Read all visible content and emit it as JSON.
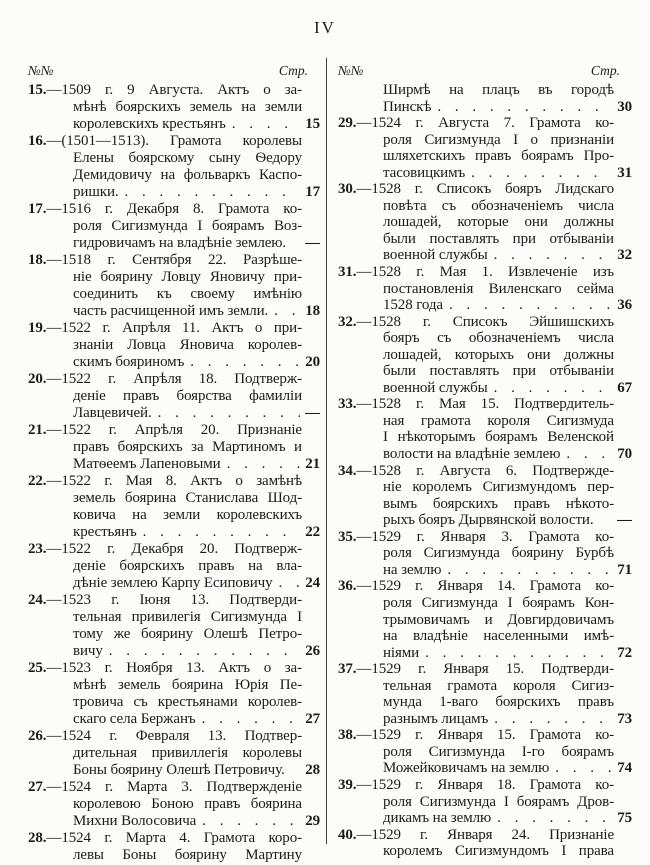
{
  "page_header": {
    "page_number": "IV"
  },
  "columns": {
    "left": {
      "header": {
        "no": "№№",
        "page": "Стр."
      },
      "entries": [
        {
          "num": "15.",
          "lines": [
            "—1509 г. 9 Августа. Актъ о за-",
            "мѣнѣ боярскихъ земель на земли"
          ],
          "last": "королевскихъ крестьянъ",
          "dots": true,
          "page": "15"
        },
        {
          "num": "16.",
          "lines": [
            "—(1501—1513). Грамота королевы",
            "Елены боярскому сыну Ѳедору",
            "Демидовичу на фольваркъ Каспо-"
          ],
          "last": "ришки.",
          "dots": true,
          "page": "17"
        },
        {
          "num": "17.",
          "lines": [
            "—1516 г. Декабря 8. Грамота ко-",
            "роля Сигизмунда I боярамъ Воз-"
          ],
          "last": "гидровичамъ на владѣніе землею.",
          "dots": false,
          "page": "—"
        },
        {
          "num": "18.",
          "lines": [
            "—1518 г. Сентября 22. Разрѣше-",
            "ніе боярину Ловцу Яновичу при-",
            "соединить къ своему имѣнію"
          ],
          "last": "часть расчищенной имъ земли.",
          "dots": true,
          "page": "18"
        },
        {
          "num": "19.",
          "lines": [
            "—1522 г. Апрѣля 11. Актъ о при-",
            "знаніи Ловца Яновича королев-"
          ],
          "last": "скимъ бояриномъ",
          "dots": true,
          "page": "20"
        },
        {
          "num": "20.",
          "lines": [
            "—1522 г. Апрѣля 18. Подтверж-",
            "деніе правъ боярства фамиліи"
          ],
          "last": "Лавцевичей.",
          "dots": true,
          "page": "—"
        },
        {
          "num": "21.",
          "lines": [
            "—1522 г. Апрѣля 20. Признаніе",
            "правъ боярскихъ за Мартиномъ и"
          ],
          "last": "Матѳеемъ Лапеновыми",
          "dots": true,
          "page": "21"
        },
        {
          "num": "22.",
          "lines": [
            "—1522 г. Мая 8. Актъ о замѣнѣ",
            "земель боярина Станислава Шод-",
            "ковича на земли королевскихъ"
          ],
          "last": "крестьянъ",
          "dots": true,
          "page": "22"
        },
        {
          "num": "23.",
          "lines": [
            "—1522 г. Декабря 20. Подтверж-",
            "деніе боярскихъ правъ на вла-"
          ],
          "last": "дѣніе землею Карпу Есиповичу",
          "dots": true,
          "page": "24"
        },
        {
          "num": "24.",
          "lines": [
            "—1523 г. Іюня 13. Подтверди-",
            "тельная привилегія Сигизмунда I",
            "тому же боярину Олешѣ Петро-"
          ],
          "last": "вичу",
          "dots": true,
          "page": "26"
        },
        {
          "num": "25.",
          "lines": [
            "—1523 г. Ноября 13. Актъ о за-",
            "мѣнѣ земель боярина Юрія Пе-",
            "тровича съ крестьянами королев-"
          ],
          "last": "скаго села Бержанъ",
          "dots": true,
          "page": "27"
        },
        {
          "num": "26.",
          "lines": [
            "—1524 г. Февраля 13. Подтвер-",
            "дительная привиллегія королевы"
          ],
          "last": "Боны боярину Олешѣ Петровичу.",
          "dots": false,
          "page": "28"
        },
        {
          "num": "27.",
          "lines": [
            "—1524 г. Марта 3. Подтвержденіе",
            "королевою Боною правъ боярина"
          ],
          "last": "Михни Волосовича",
          "dots": true,
          "page": "29"
        },
        {
          "num": "28.",
          "lines": [
            "—1524 г. Марта 4. Грамота коро-"
          ],
          "last": "левы Боны боярину Мартину",
          "dots": false,
          "page": ""
        }
      ]
    },
    "right": {
      "header": {
        "no": "№№",
        "page": "Стр."
      },
      "entries": [
        {
          "num": "",
          "lines": [
            "Ширмѣ на плацъ въ городѣ"
          ],
          "last": "Пинскѣ",
          "dots": true,
          "page": "30"
        },
        {
          "num": "29.",
          "lines": [
            "—1524 г. Августа 7. Грамота ко-",
            "роля Сигизмунда I о признаніи",
            "шляхетскихъ правъ боярамъ Про-"
          ],
          "last": "тасовицкимъ",
          "dots": true,
          "page": "31"
        },
        {
          "num": "30.",
          "lines": [
            "—1528 г. Списокъ бояръ Лидскаго",
            "повѣта съ обозначеніемъ числа",
            "лошадей, которые они должны",
            "были поставлять при отбываніи"
          ],
          "last": "военной службы",
          "dots": true,
          "page": "32"
        },
        {
          "num": "31.",
          "lines": [
            "—1528 г. Мая 1. Извлеченіе изъ",
            "постановленія Виленскаго сейма"
          ],
          "last": "1528 года",
          "dots": true,
          "page": "36"
        },
        {
          "num": "32.",
          "lines": [
            "—1528 г. Списокъ Эйшишскихъ",
            "бояръ съ обозначеніемъ числа",
            "лошадей, которыхъ они должны",
            "были поставлять при отбываніи"
          ],
          "last": "военной службы",
          "dots": true,
          "page": "67"
        },
        {
          "num": "33.",
          "lines": [
            "—1528 г. Мая 15. Подтвердитель-",
            "ная грамота короля Сигизмуда",
            "I нѣкоторымъ боярамъ Веленской"
          ],
          "last": "волости на владѣніе землею",
          "dots": true,
          "page": "70"
        },
        {
          "num": "34.",
          "lines": [
            "—1528 г. Августа 6. Подтвержде-",
            "ніе королемъ Сигизмундомъ пер-",
            "вымъ боярскихъ правъ нѣкото-"
          ],
          "last": "рыхъ бояръ Дырвянской волости.",
          "dots": false,
          "page": "—"
        },
        {
          "num": "35.",
          "lines": [
            "—1529 г. Января 3. Грамота ко-",
            "роля Сигизмунда боярину Бурбѣ"
          ],
          "last": "на землю",
          "dots": true,
          "page": "71"
        },
        {
          "num": "36.",
          "lines": [
            "—1529 г. Января 14. Грамота ко-",
            "роля Сигизмунда I боярамъ Кон-",
            "трымовичамъ и Довгирдовичамъ",
            "на владѣніе населенными имѣ-"
          ],
          "last": "ніями",
          "dots": true,
          "page": "72"
        },
        {
          "num": "37.",
          "lines": [
            "—1529 г. Января 15. Подтверди-",
            "тельная грамота короля Сигиз-",
            "мунда 1-ваго боярскихъ правъ"
          ],
          "last": "разнымъ лицамъ",
          "dots": true,
          "page": "73"
        },
        {
          "num": "38.",
          "lines": [
            "—1529 г. Января 15. Грамота ко-",
            "роля Сигизмунда I-го боярамъ"
          ],
          "last": "Можейковичамъ на землю",
          "dots": true,
          "page": "74"
        },
        {
          "num": "39.",
          "lines": [
            "—1529 г. Января 18. Грамота ко-",
            "роля Сигизмунда I боярамъ Дров-"
          ],
          "last": "дикамъ на землю",
          "dots": true,
          "page": "75"
        },
        {
          "num": "40.",
          "lines": [
            "—1529 г. Января 24. Признаніе"
          ],
          "last": "королемъ Сигизмундомъ I права",
          "dots": false,
          "page": ""
        }
      ]
    }
  }
}
